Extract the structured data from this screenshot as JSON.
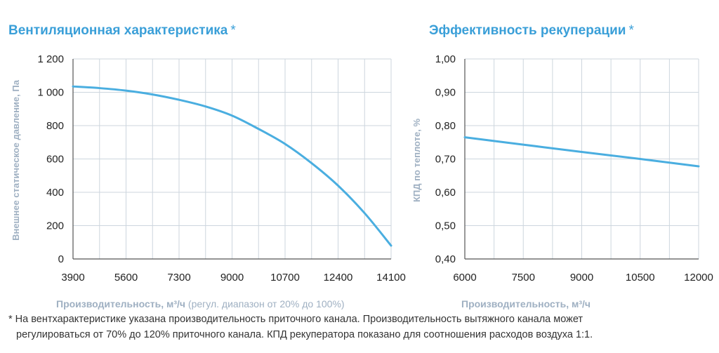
{
  "footnote": {
    "line1": "* На вентхарактеристике указана производительность приточного канала. Производительность вытяжного канала может",
    "line2": "регулироваться от 70% до 120% приточного канала. КПД рекуператора показано для соотношения расходов воздуха 1:1."
  },
  "chart_data": [
    {
      "type": "line",
      "title": "Вентиляционная характеристика",
      "title_mark": "*",
      "xlabel_bold": "Производительность, м³/ч",
      "xlabel_note": " (регул. диапазон от 20% до 100%)",
      "ylabel": "Внешнее статическое давление, Па",
      "xlim": [
        3900,
        14100
      ],
      "ylim": [
        0,
        1200
      ],
      "xticks": [
        "3900",
        "5600",
        "7300",
        "9000",
        "10700",
        "12400",
        "14100"
      ],
      "yticks": [
        "0",
        "200",
        "400",
        "600",
        "800",
        "1 000",
        "1 200"
      ],
      "xtick_values": [
        3900,
        5600,
        7300,
        9000,
        10700,
        12400,
        14100
      ],
      "ytick_values": [
        0,
        200,
        400,
        600,
        800,
        1000,
        1200
      ],
      "x_minor_step": 850,
      "series": [
        {
          "color": "#4aaee0",
          "x": [
            3900,
            4750,
            5600,
            6450,
            7300,
            8150,
            9000,
            9850,
            10700,
            11550,
            12400,
            13250,
            14100
          ],
          "y": [
            1035,
            1025,
            1010,
            987,
            955,
            915,
            860,
            780,
            690,
            575,
            440,
            275,
            80
          ]
        }
      ]
    },
    {
      "type": "line",
      "title": "Эффективность рекуперации",
      "title_mark": "*",
      "xlabel_bold": "Производительность, м³/ч",
      "xlabel_note": "",
      "ylabel": "КПД по теплоте, %",
      "xlim": [
        6000,
        12000
      ],
      "ylim": [
        0.4,
        1.0
      ],
      "xticks": [
        "6000",
        "7500",
        "9000",
        "10500",
        "12000"
      ],
      "yticks": [
        "0,40",
        "0,50",
        "0,60",
        "0,70",
        "0,80",
        "0,90",
        "1,00"
      ],
      "xtick_values": [
        6000,
        7500,
        9000,
        10500,
        12000
      ],
      "ytick_values": [
        0.4,
        0.5,
        0.6,
        0.7,
        0.8,
        0.9,
        1.0
      ],
      "x_minor_step": 750,
      "series": [
        {
          "color": "#4aaee0",
          "x": [
            6000,
            7500,
            9000,
            10500,
            12000
          ],
          "y": [
            0.765,
            0.743,
            0.721,
            0.7,
            0.678
          ]
        }
      ]
    }
  ]
}
